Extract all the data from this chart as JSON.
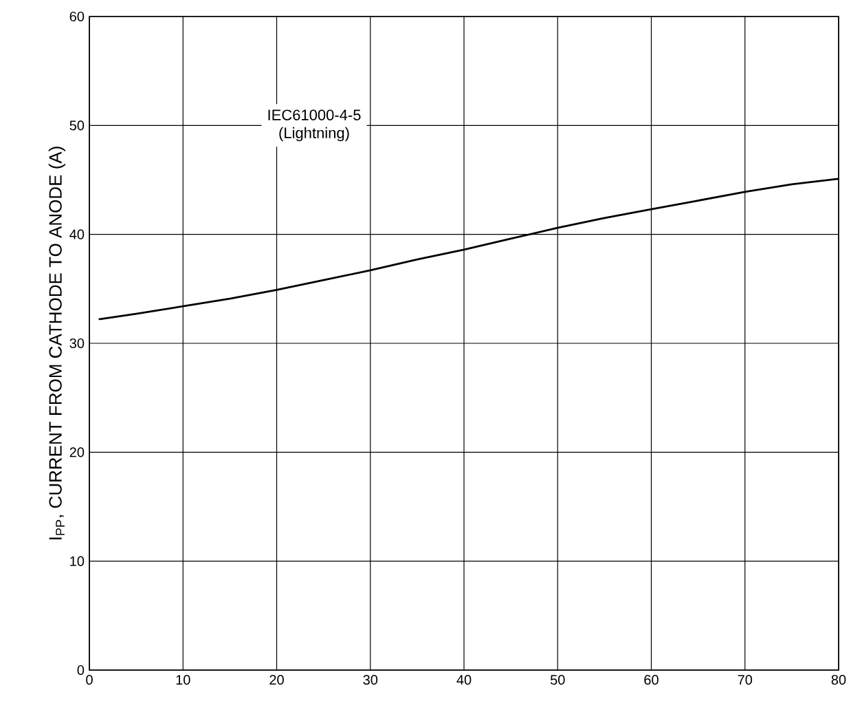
{
  "chart_data": {
    "type": "line",
    "ylabel": "I$_{PP}$, CURRENT FROM CATHODE TO ANODE (A)",
    "annotations": [
      "IEC61000-4-5",
      "(Lightning)"
    ],
    "series": [
      {
        "color": "#000000",
        "x": [
          1,
          5,
          10,
          15,
          20,
          25,
          30,
          35,
          40,
          45,
          50,
          55,
          60,
          65,
          70,
          75,
          80
        ],
        "values": [
          32.2,
          32.7,
          33.4,
          34.1,
          34.9,
          35.8,
          36.7,
          37.7,
          38.6,
          39.6,
          40.6,
          41.5,
          42.3,
          43.1,
          43.9,
          44.6,
          45.1
        ]
      }
    ],
    "xlim": [
      0,
      80
    ],
    "ylim": [
      0,
      60
    ],
    "xticks": [
      0,
      10,
      20,
      30,
      40,
      50,
      60,
      70,
      80
    ],
    "yticks": [
      0,
      10,
      20,
      30,
      40,
      50,
      60
    ],
    "grid": true,
    "marker": "none",
    "line_style": "solid"
  }
}
